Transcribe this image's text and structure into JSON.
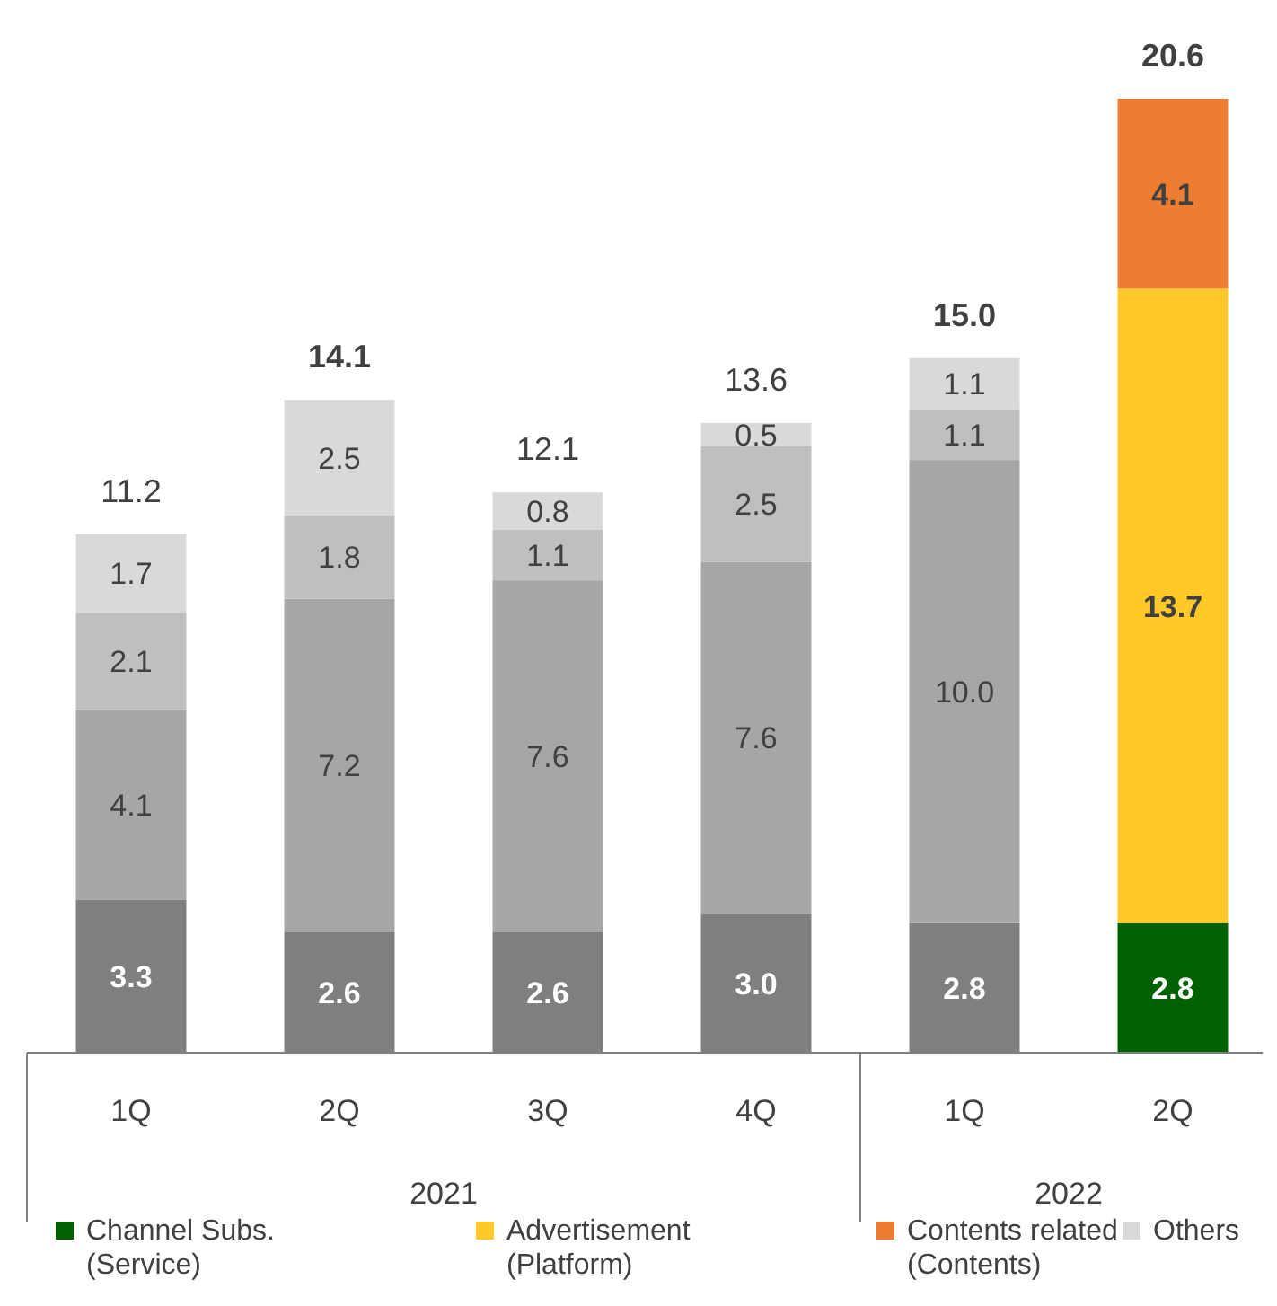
{
  "chart_data": {
    "type": "bar",
    "stacked": true,
    "legend": "bottom",
    "categories": [
      "1Q",
      "2Q",
      "3Q",
      "4Q",
      "1Q",
      "2Q"
    ],
    "series": [
      {
        "name": "Channel Subs.\n(Service)",
        "color": "#006100",
        "colors": [
          "#7f7f7f",
          "#7f7f7f",
          "#7f7f7f",
          "#7f7f7f",
          "#7f7f7f",
          "#006100"
        ],
        "values": [
          3.3,
          2.6,
          2.6,
          3.0,
          2.8,
          2.8
        ],
        "value_labels": [
          "3.3",
          "2.6",
          "2.6",
          "3.0",
          "2.8",
          "2.8"
        ]
      },
      {
        "name": "Advertisement\n(Platform)",
        "color": "#ffc929",
        "colors": [
          "#a6a6a6",
          "#a6a6a6",
          "#a6a6a6",
          "#a6a6a6",
          "#a6a6a6",
          "#ffc929"
        ],
        "values": [
          4.1,
          7.2,
          7.6,
          7.6,
          10.0,
          13.7
        ],
        "value_labels": [
          "4.1",
          "7.2",
          "7.6",
          "7.6",
          "10.0",
          "13.7"
        ]
      },
      {
        "name": "Contents related\n(Contents)",
        "color": "#ed7d31",
        "colors": [
          "#bfbfbf",
          "#bfbfbf",
          "#bfbfbf",
          "#bfbfbf",
          "#bfbfbf",
          "#ed7d31"
        ],
        "values": [
          2.1,
          1.8,
          1.1,
          2.5,
          1.1,
          4.1
        ],
        "value_labels": [
          "2.1",
          "1.8",
          "1.1",
          "2.5",
          "1.1",
          "4.1"
        ]
      },
      {
        "name": "Others",
        "color": "#d9d9d9",
        "colors": [
          "#d9d9d9",
          "#d9d9d9",
          "#d9d9d9",
          "#d9d9d9",
          "#d9d9d9",
          null
        ],
        "values": [
          1.7,
          2.5,
          0.8,
          0.5,
          1.1,
          null
        ],
        "value_labels": [
          "1.7",
          "2.5",
          "0.8",
          "0.5",
          "1.1",
          null
        ]
      }
    ],
    "totals": [
      "11.2",
      "14.1",
      "12.1",
      "13.6",
      "15.0",
      "20.6"
    ],
    "annotations": [
      "2021",
      "2022"
    ]
  }
}
